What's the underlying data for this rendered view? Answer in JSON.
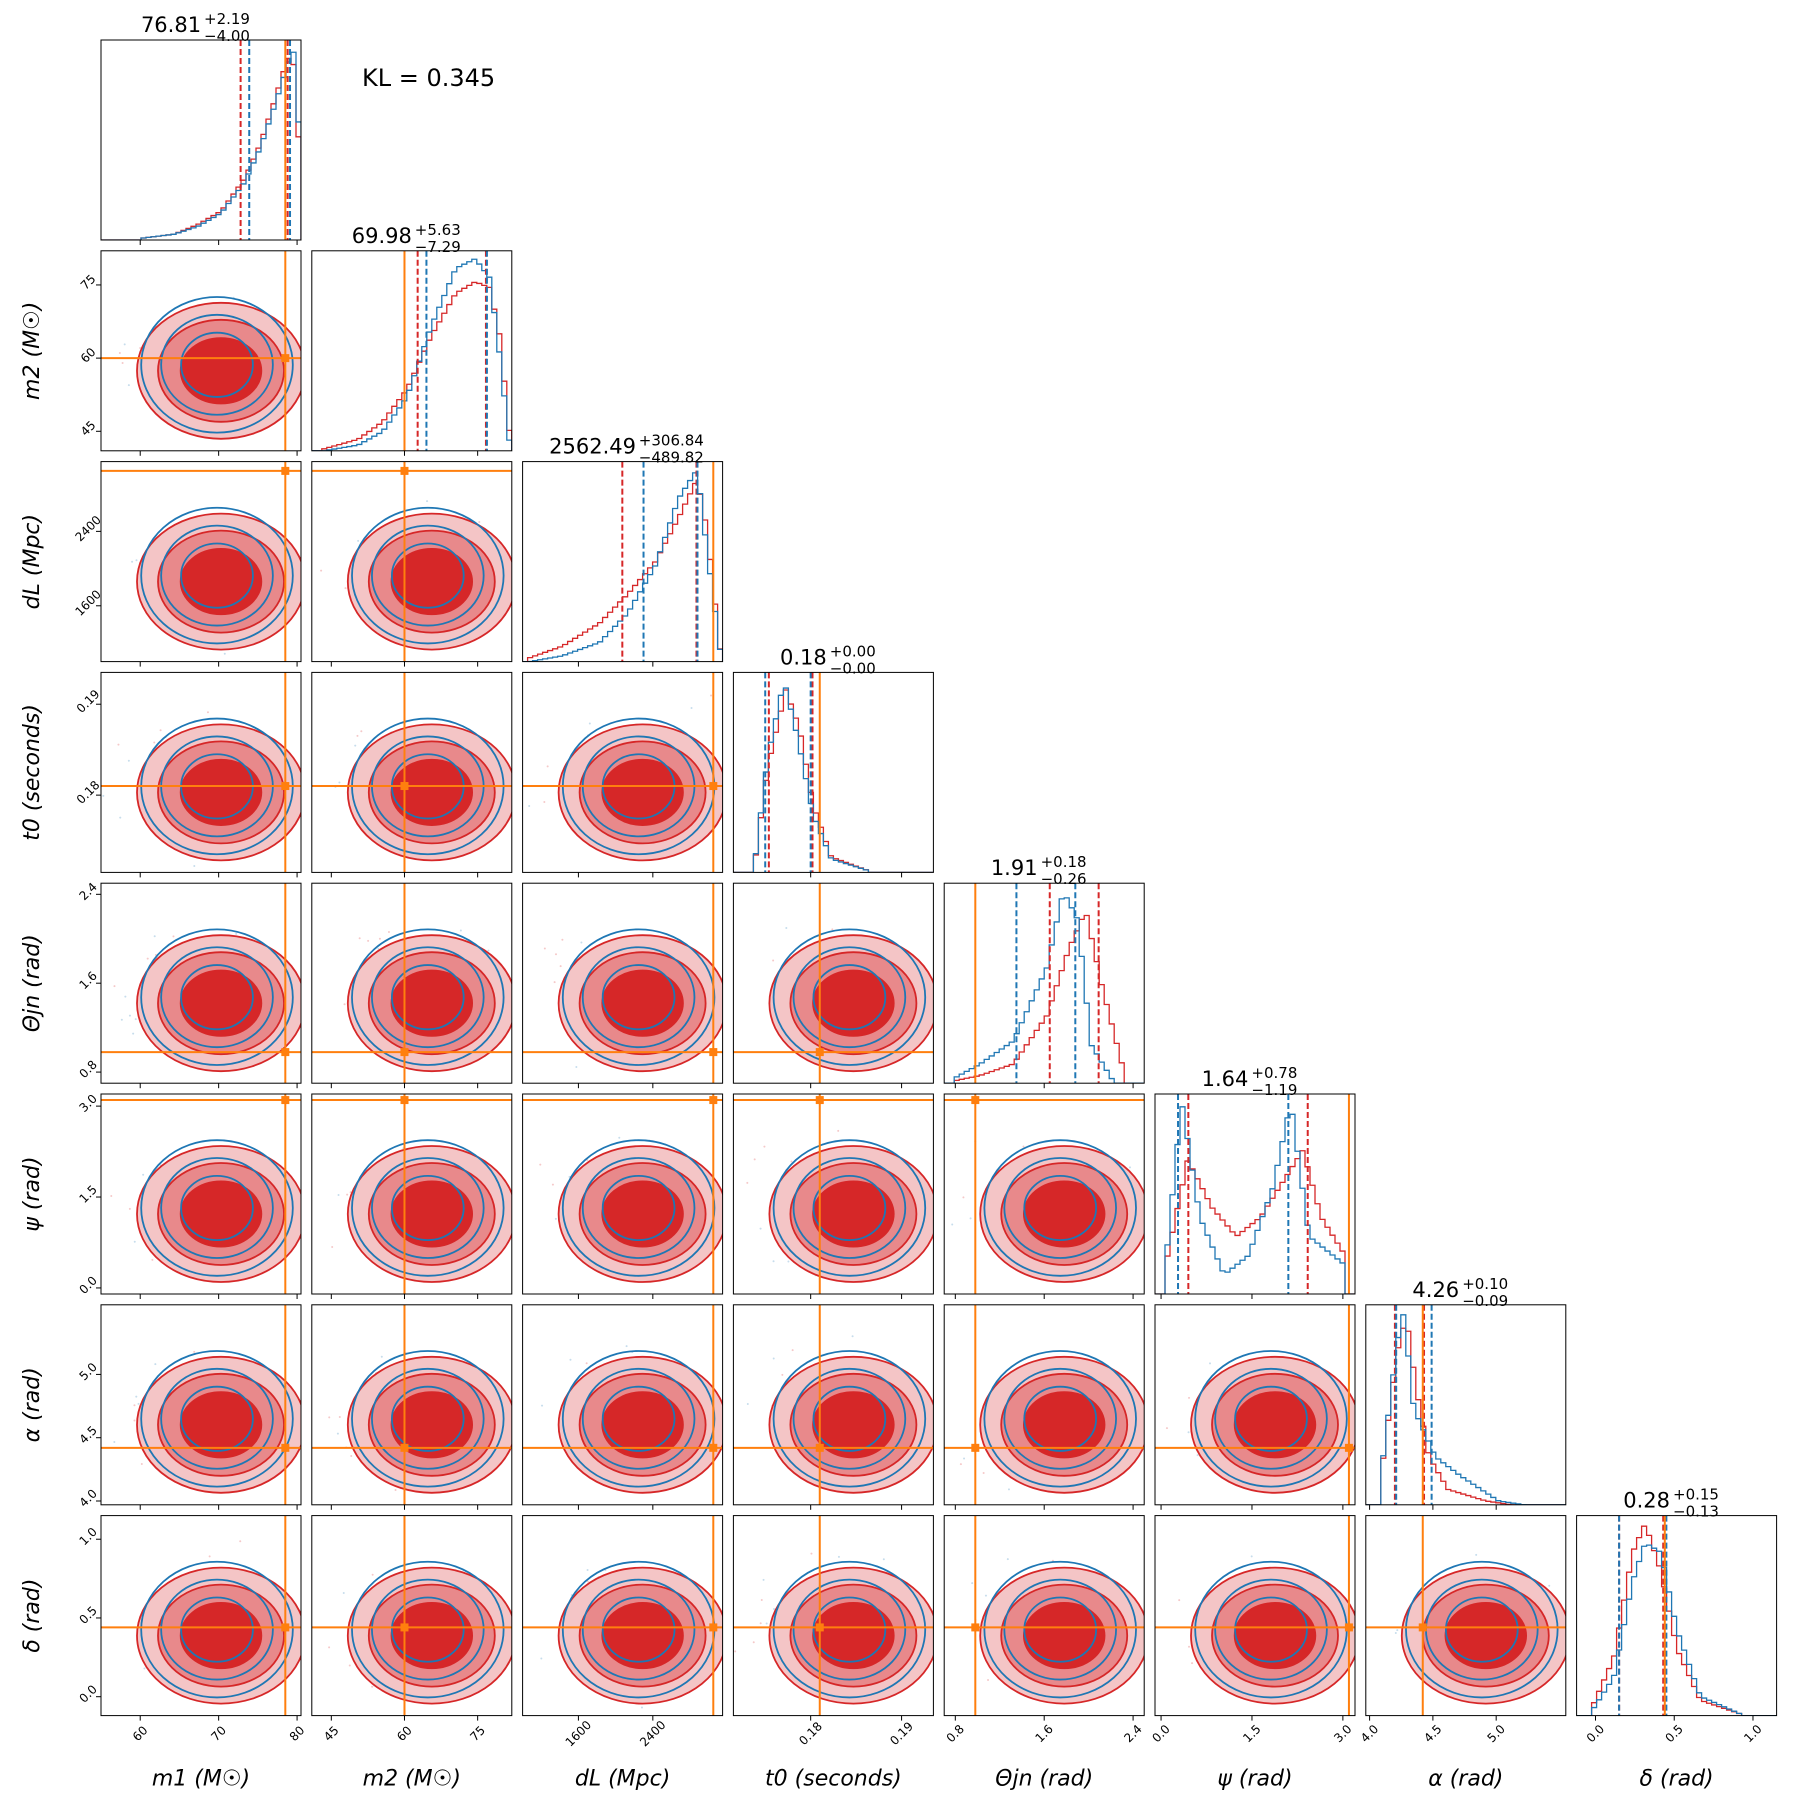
{
  "kl_text": "KL = 0.345",
  "colors": {
    "red": "#d62728",
    "blue": "#1f77b4",
    "truth": "#ff7f0e"
  },
  "chart_data": {
    "type": "corner",
    "params": [
      {
        "key": "m1",
        "label": "m1 (M☉)",
        "sym": "m",
        "sub": "1",
        "unit": "(M☉)",
        "range": [
          55,
          80.5
        ],
        "ticks": [
          60,
          70,
          80
        ],
        "truth": 78.5,
        "title_main": "76.81",
        "title_plus": "+2.19",
        "title_minus": "−4.00",
        "red_lines": [
          72.8,
          78.8
        ],
        "blue_lines": [
          73.9,
          79.1
        ]
      },
      {
        "key": "m2",
        "label": "m2 (M☉)",
        "sym": "m",
        "sub": "2",
        "unit": "(M☉)",
        "range": [
          41,
          82
        ],
        "ticks": [
          45,
          60,
          75
        ],
        "truth": 60,
        "title_main": "69.98",
        "title_plus": "+5.63",
        "title_minus": "−7.29",
        "red_lines": [
          62.7,
          76.7
        ],
        "blue_lines": [
          64.5,
          76.9
        ]
      },
      {
        "key": "dL",
        "label": "dL (Mpc)",
        "sym": "d",
        "sub": "L",
        "unit": "(Mpc)",
        "range": [
          1000,
          3150
        ],
        "ticks": [
          1600,
          2400
        ],
        "truth": 3050,
        "title_main": "2562.49",
        "title_plus": "+306.84",
        "title_minus": "−489.82",
        "red_lines": [
          2072,
          2869
        ],
        "blue_lines": [
          2300,
          2880
        ]
      },
      {
        "key": "t0",
        "label": "t0 (seconds)",
        "sym": "t",
        "sub": "0",
        "unit": "(seconds)",
        "range": [
          0.1715,
          0.1935
        ],
        "ticks": [
          0.18,
          0.19
        ],
        "truth": 0.181,
        "title_main": "0.18",
        "title_plus": "+0.00",
        "title_minus": "−0.00",
        "red_lines": [
          0.1754,
          0.1802
        ],
        "blue_lines": [
          0.175,
          0.18
        ]
      },
      {
        "key": "theta",
        "label": "Θjn (rad)",
        "sym": "Θ",
        "sub": "jn",
        "unit": "(rad)",
        "range": [
          0.7,
          2.5
        ],
        "ticks": [
          0.8,
          1.6,
          2.4
        ],
        "truth": 0.98,
        "title_main": "1.91",
        "title_plus": "+0.18",
        "title_minus": "−0.26",
        "red_lines": [
          1.65,
          2.09
        ],
        "blue_lines": [
          1.35,
          1.88
        ]
      },
      {
        "key": "psi",
        "label": "ψ (rad)",
        "sym": "ψ",
        "sub": "",
        "unit": "(rad)",
        "range": [
          -0.1,
          3.2
        ],
        "ticks": [
          0.0,
          1.5,
          3.0
        ],
        "truth": 3.1,
        "title_main": "1.64",
        "title_plus": "+0.78",
        "title_minus": "−1.19",
        "red_lines": [
          0.45,
          2.42
        ],
        "blue_lines": [
          0.28,
          2.1
        ]
      },
      {
        "key": "alpha",
        "label": "α (rad)",
        "sym": "α",
        "sub": "",
        "unit": "(rad)",
        "range": [
          3.97,
          5.55
        ],
        "ticks": [
          4.0,
          4.5,
          5.0
        ],
        "truth": 4.42,
        "title_main": "4.26",
        "title_plus": "+0.10",
        "title_minus": "−0.09",
        "red_lines": [
          4.2,
          4.43
        ],
        "blue_lines": [
          4.21,
          4.49
        ]
      },
      {
        "key": "delta",
        "label": "δ (rad)",
        "sym": "δ",
        "sub": "",
        "unit": "(rad)",
        "range": [
          -0.12,
          1.15
        ],
        "ticks": [
          0.0,
          0.5,
          1.0
        ],
        "truth": 0.44,
        "title_main": "0.28",
        "title_plus": "+0.15",
        "title_minus": "−0.13",
        "red_lines": [
          0.15,
          0.43
        ],
        "blue_lines": [
          0.15,
          0.45
        ]
      }
    ],
    "tick_labels": {
      "m1": [
        "60",
        "70",
        "80"
      ],
      "m2": [
        "45",
        "60",
        "75"
      ],
      "dL": [
        "1600",
        "2400"
      ],
      "t0": [
        "0.18",
        "0.19"
      ],
      "theta": [
        "0.8",
        "1.6",
        "2.4"
      ],
      "psi": [
        "0.0",
        "1.5",
        "3.0"
      ],
      "alpha": [
        "4.0",
        "4.5",
        "5.0"
      ],
      "delta": [
        "0.0",
        "0.5",
        "1.0"
      ]
    },
    "marginals": {
      "m1": {
        "red": [
          [
            60,
            0.01
          ],
          [
            64,
            0.03
          ],
          [
            67,
            0.08
          ],
          [
            70,
            0.15
          ],
          [
            73,
            0.32
          ],
          [
            75,
            0.5
          ],
          [
            77,
            0.75
          ],
          [
            78.5,
            0.95
          ],
          [
            79.5,
            0.9
          ],
          [
            80.3,
            0.1
          ]
        ],
        "blue": [
          [
            60,
            0.01
          ],
          [
            64,
            0.03
          ],
          [
            67,
            0.07
          ],
          [
            70,
            0.14
          ],
          [
            73,
            0.3
          ],
          [
            75,
            0.48
          ],
          [
            77,
            0.72
          ],
          [
            78.5,
            0.92
          ],
          [
            79.5,
            1.0
          ],
          [
            80.3,
            0.15
          ]
        ]
      },
      "m2": {
        "red": [
          [
            43,
            0.01
          ],
          [
            50,
            0.06
          ],
          [
            55,
            0.15
          ],
          [
            60,
            0.32
          ],
          [
            65,
            0.6
          ],
          [
            70,
            0.82
          ],
          [
            74,
            0.88
          ],
          [
            77,
            0.85
          ],
          [
            79,
            0.6
          ],
          [
            81,
            0.1
          ]
        ],
        "blue": [
          [
            43,
            0.0
          ],
          [
            50,
            0.03
          ],
          [
            55,
            0.1
          ],
          [
            60,
            0.28
          ],
          [
            65,
            0.65
          ],
          [
            70,
            0.95
          ],
          [
            74,
            1.0
          ],
          [
            77,
            0.9
          ],
          [
            79,
            0.5
          ],
          [
            81,
            0.05
          ]
        ]
      },
      "dL": {
        "red": [
          [
            1050,
            0.02
          ],
          [
            1400,
            0.08
          ],
          [
            1800,
            0.2
          ],
          [
            2100,
            0.35
          ],
          [
            2400,
            0.52
          ],
          [
            2650,
            0.75
          ],
          [
            2850,
            0.95
          ],
          [
            2950,
            0.7
          ],
          [
            3100,
            0.05
          ]
        ],
        "blue": [
          [
            1050,
            0.0
          ],
          [
            1400,
            0.03
          ],
          [
            1800,
            0.1
          ],
          [
            2100,
            0.25
          ],
          [
            2400,
            0.5
          ],
          [
            2650,
            0.85
          ],
          [
            2850,
            1.0
          ],
          [
            2950,
            0.6
          ],
          [
            3100,
            0.05
          ]
        ]
      },
      "t0": {
        "red": [
          [
            0.1735,
            0.02
          ],
          [
            0.175,
            0.55
          ],
          [
            0.177,
            0.95
          ],
          [
            0.1785,
            0.75
          ],
          [
            0.18,
            0.35
          ],
          [
            0.182,
            0.08
          ],
          [
            0.186,
            0.01
          ]
        ],
        "blue": [
          [
            0.1735,
            0.02
          ],
          [
            0.175,
            0.6
          ],
          [
            0.1768,
            1.0
          ],
          [
            0.1783,
            0.7
          ],
          [
            0.18,
            0.3
          ],
          [
            0.182,
            0.07
          ],
          [
            0.186,
            0.01
          ]
        ]
      },
      "theta": {
        "red": [
          [
            0.75,
            0.01
          ],
          [
            1.0,
            0.04
          ],
          [
            1.3,
            0.1
          ],
          [
            1.6,
            0.35
          ],
          [
            1.8,
            0.7
          ],
          [
            1.95,
            0.9
          ],
          [
            2.1,
            0.5
          ],
          [
            2.3,
            0.05
          ]
        ],
        "blue": [
          [
            0.75,
            0.02
          ],
          [
            1.0,
            0.1
          ],
          [
            1.3,
            0.22
          ],
          [
            1.6,
            0.6
          ],
          [
            1.75,
            1.0
          ],
          [
            1.88,
            0.85
          ],
          [
            2.0,
            0.2
          ],
          [
            2.2,
            0.01
          ]
        ]
      },
      "psi": {
        "red": [
          [
            0.0,
            0.1
          ],
          [
            0.4,
            0.7
          ],
          [
            0.8,
            0.45
          ],
          [
            1.2,
            0.3
          ],
          [
            1.6,
            0.4
          ],
          [
            2.0,
            0.6
          ],
          [
            2.3,
            0.75
          ],
          [
            2.6,
            0.4
          ],
          [
            3.0,
            0.2
          ]
        ],
        "blue": [
          [
            0.0,
            0.05
          ],
          [
            0.3,
            1.0
          ],
          [
            0.6,
            0.4
          ],
          [
            1.0,
            0.1
          ],
          [
            1.4,
            0.2
          ],
          [
            1.8,
            0.55
          ],
          [
            2.1,
            1.0
          ],
          [
            2.4,
            0.3
          ],
          [
            3.0,
            0.15
          ]
        ]
      },
      "alpha": {
        "red": [
          [
            4.05,
            0.05
          ],
          [
            4.2,
            0.8
          ],
          [
            4.27,
            0.98
          ],
          [
            4.35,
            0.6
          ],
          [
            4.45,
            0.25
          ],
          [
            4.6,
            0.08
          ],
          [
            4.9,
            0.02
          ],
          [
            5.1,
            0.0
          ]
        ],
        "blue": [
          [
            4.05,
            0.05
          ],
          [
            4.2,
            0.85
          ],
          [
            4.25,
            1.0
          ],
          [
            4.33,
            0.5
          ],
          [
            4.5,
            0.25
          ],
          [
            4.7,
            0.15
          ],
          [
            5.0,
            0.02
          ],
          [
            5.2,
            0.0
          ]
        ]
      },
      "delta": {
        "red": [
          [
            -0.05,
            0.02
          ],
          [
            0.1,
            0.3
          ],
          [
            0.22,
            0.85
          ],
          [
            0.3,
            1.0
          ],
          [
            0.4,
            0.75
          ],
          [
            0.5,
            0.35
          ],
          [
            0.65,
            0.08
          ],
          [
            0.9,
            0.01
          ]
        ],
        "blue": [
          [
            -0.05,
            0.01
          ],
          [
            0.1,
            0.2
          ],
          [
            0.22,
            0.7
          ],
          [
            0.3,
            0.9
          ],
          [
            0.4,
            0.85
          ],
          [
            0.5,
            0.45
          ],
          [
            0.65,
            0.1
          ],
          [
            0.9,
            0.01
          ]
        ]
      }
    }
  }
}
